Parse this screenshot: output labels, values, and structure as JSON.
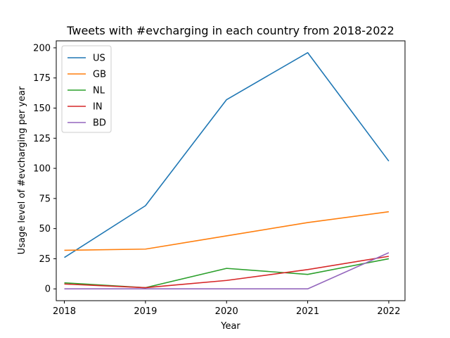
{
  "chart_data": {
    "type": "line",
    "title": "Tweets with #evcharging in each country from 2018-2022",
    "xlabel": "Year",
    "ylabel": "Usage level of #evcharging per year",
    "x": [
      2018,
      2019,
      2020,
      2021,
      2022
    ],
    "xlim": [
      2017.9,
      2022.2
    ],
    "ylim": [
      -9.8,
      205.8
    ],
    "xticks": [
      "2018",
      "2019",
      "2020",
      "2021",
      "2022"
    ],
    "yticks": [
      0,
      25,
      50,
      75,
      100,
      125,
      150,
      175,
      200
    ],
    "grid": false,
    "legend_position": "top-left",
    "series": [
      {
        "name": "US",
        "color": "#1f77b4",
        "values": [
          26,
          69,
          157,
          196,
          106
        ]
      },
      {
        "name": "GB",
        "color": "#ff7f0e",
        "values": [
          32,
          33,
          44,
          55,
          64
        ]
      },
      {
        "name": "NL",
        "color": "#2ca02c",
        "values": [
          5,
          1,
          17,
          12,
          25
        ]
      },
      {
        "name": "IN",
        "color": "#d62728",
        "values": [
          4,
          1,
          7,
          16,
          27
        ]
      },
      {
        "name": "BD",
        "color": "#9467bd",
        "values": [
          0,
          0,
          0,
          0,
          30
        ]
      }
    ]
  }
}
